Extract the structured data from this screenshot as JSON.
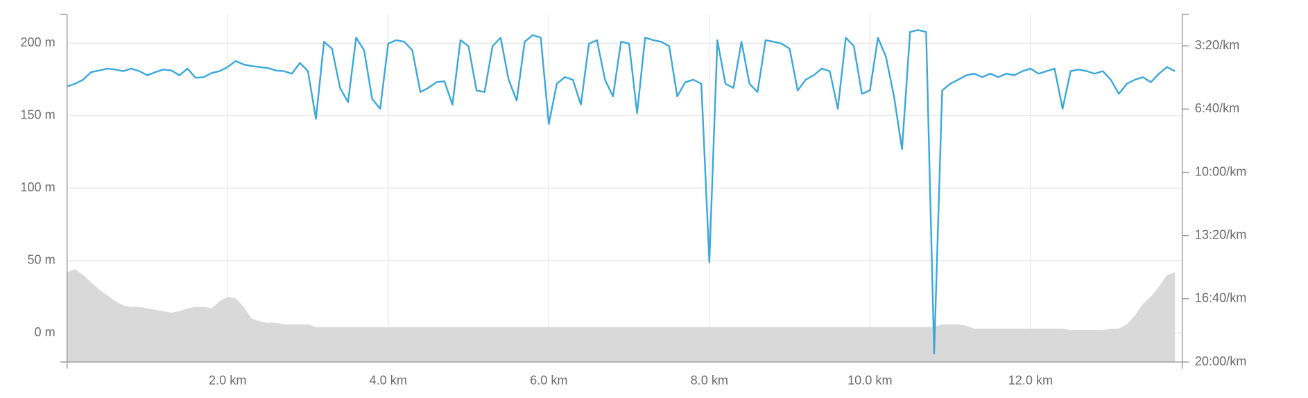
{
  "chart_data": {
    "type": "line",
    "x": [
      0,
      0.1,
      0.2,
      0.3,
      0.4,
      0.5,
      0.6,
      0.7,
      0.8,
      0.9,
      1,
      1.1,
      1.2,
      1.3,
      1.4,
      1.5,
      1.6,
      1.7,
      1.8,
      1.9,
      2,
      2.1,
      2.2,
      2.3,
      2.4,
      2.5,
      2.6,
      2.7,
      2.8,
      2.9,
      3,
      3.1,
      3.2,
      3.3,
      3.4,
      3.5,
      3.6,
      3.7,
      3.8,
      3.9,
      4,
      4.1,
      4.2,
      4.3,
      4.4,
      4.5,
      4.6,
      4.7,
      4.8,
      4.9,
      5,
      5.1,
      5.2,
      5.3,
      5.4,
      5.5,
      5.6,
      5.7,
      5.8,
      5.9,
      6,
      6.1,
      6.2,
      6.3,
      6.4,
      6.5,
      6.6,
      6.7,
      6.8,
      6.9,
      7,
      7.1,
      7.2,
      7.3,
      7.4,
      7.5,
      7.6,
      7.7,
      7.8,
      7.9,
      8,
      8.1,
      8.2,
      8.3,
      8.4,
      8.5,
      8.6,
      8.7,
      8.8,
      8.9,
      9,
      9.1,
      9.2,
      9.3,
      9.4,
      9.5,
      9.6,
      9.7,
      9.8,
      9.9,
      10,
      10.1,
      10.2,
      10.3,
      10.4,
      10.5,
      10.6,
      10.7,
      10.8,
      10.9,
      11,
      11.1,
      11.2,
      11.3,
      11.4,
      11.5,
      11.6,
      11.7,
      11.8,
      11.9,
      12,
      12.1,
      12.2,
      12.3,
      12.4,
      12.5,
      12.6,
      12.7,
      12.8,
      12.9,
      13,
      13.1,
      13.2,
      13.3,
      13.4,
      13.5,
      13.6,
      13.7,
      13.8
    ],
    "series": [
      {
        "type": "area",
        "axis": "y",
        "color": "#d9d9d9",
        "values": [
          42,
          44,
          40,
          35,
          30,
          26,
          22,
          19,
          18,
          18,
          17,
          16,
          15,
          14,
          15,
          17,
          18,
          18,
          17,
          22,
          25,
          24,
          18,
          10,
          8,
          7,
          7,
          6,
          6,
          6,
          6,
          4,
          4,
          4,
          4,
          4,
          4,
          4,
          4,
          4,
          4,
          4,
          4,
          4,
          4,
          4,
          4,
          4,
          4,
          4,
          4,
          4,
          4,
          4,
          4,
          4,
          4,
          4,
          4,
          4,
          4,
          4,
          4,
          4,
          4,
          4,
          4,
          4,
          4,
          4,
          4,
          4,
          4,
          4,
          4,
          4,
          4,
          4,
          4,
          4,
          4,
          4,
          4,
          4,
          4,
          4,
          4,
          4,
          4,
          4,
          4,
          4,
          4,
          4,
          4,
          4,
          4,
          4,
          4,
          4,
          4,
          4,
          4,
          4,
          4,
          4,
          4,
          4,
          4,
          6,
          6,
          6,
          5,
          3,
          3,
          3,
          3,
          3,
          3,
          3,
          3,
          3,
          3,
          3,
          3,
          2,
          2,
          2,
          2,
          2,
          3,
          3,
          6,
          12,
          20,
          25,
          32,
          40,
          42
        ]
      },
      {
        "type": "line",
        "axis": "y2",
        "color": "#3aa8dc",
        "values": [
          328,
          320,
          307,
          283,
          278,
          272,
          275,
          280,
          272,
          280,
          293,
          283,
          275,
          278,
          293,
          272,
          301,
          299,
          286,
          280,
          267,
          248,
          259,
          264,
          267,
          270,
          278,
          280,
          288,
          254,
          280,
          431,
          187,
          209,
          333,
          378,
          174,
          214,
          368,
          399,
          193,
          182,
          187,
          214,
          346,
          333,
          315,
          312,
          386,
          182,
          201,
          341,
          346,
          201,
          174,
          307,
          373,
          187,
          166,
          174,
          447,
          320,
          299,
          307,
          386,
          193,
          182,
          307,
          360,
          187,
          193,
          413,
          174,
          182,
          187,
          201,
          360,
          315,
          307,
          320,
          884,
          182,
          320,
          333,
          187,
          320,
          346,
          182,
          187,
          193,
          209,
          341,
          307,
          293,
          272,
          280,
          399,
          174,
          201,
          352,
          341,
          174,
          235,
          360,
          527,
          156,
          150,
          156,
          1173,
          341,
          320,
          307,
          293,
          288,
          299,
          288,
          299,
          288,
          293,
          280,
          272,
          288,
          280,
          272,
          399,
          280,
          275,
          280,
          288,
          280,
          307,
          352,
          320,
          307,
          299,
          315,
          288,
          267,
          280
        ]
      }
    ],
    "xlim": [
      0,
      13.89
    ],
    "xticks": [
      {
        "value": 2,
        "label": "2.0 km"
      },
      {
        "value": 4,
        "label": "4.0 km"
      },
      {
        "value": 6,
        "label": "6.0 km"
      },
      {
        "value": 8,
        "label": "8.0 km"
      },
      {
        "value": 10,
        "label": "10.0 km"
      },
      {
        "value": 12,
        "label": "12.0 km"
      }
    ],
    "ylim": [
      -20,
      220
    ],
    "yticks": [
      {
        "value": 0,
        "label": "0 m"
      },
      {
        "value": 50,
        "label": "50 m"
      },
      {
        "value": 100,
        "label": "100 m"
      },
      {
        "value": 150,
        "label": "150 m"
      },
      {
        "value": 200,
        "label": "200 m"
      }
    ],
    "y2lim": [
      1200,
      100
    ],
    "y2ticks": [
      {
        "value": 200,
        "label": "3:20/km"
      },
      {
        "value": 400,
        "label": "6:40/km"
      },
      {
        "value": 600,
        "label": "10:00/km"
      },
      {
        "value": 800,
        "label": "13:20/km"
      },
      {
        "value": 1000,
        "label": "16:40/km"
      },
      {
        "value": 1200,
        "label": "20:00/km"
      }
    ],
    "grid": true
  }
}
